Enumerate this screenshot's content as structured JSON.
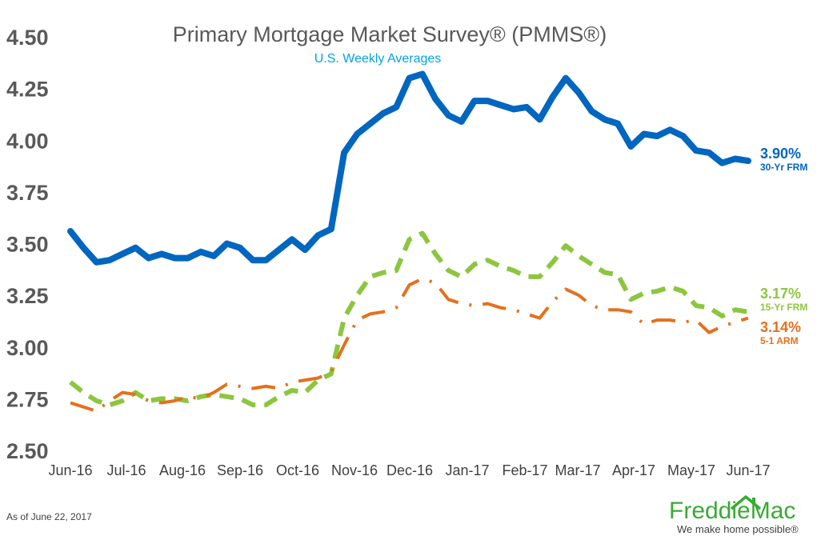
{
  "colors": {
    "frm30": "#0066c0",
    "frm15": "#8cc63f",
    "arm51": "#e5701d",
    "title": "#595959",
    "subtitle": "#00a3e0",
    "brand": "#3aaa35"
  },
  "footer": {
    "as_of": "As of June 22, 2017",
    "brand_name": "FreddieMac",
    "tagline": "We make home possible®"
  },
  "chart_data": {
    "type": "line",
    "title": "Primary Mortgage Market Survey® (PMMS®)",
    "subtitle": "U.S. Weekly Averages",
    "xlabel": "",
    "ylabel": "",
    "ylim": [
      2.5,
      4.5
    ],
    "yticks": [
      "4.50",
      "4.25",
      "4.00",
      "3.75",
      "3.50",
      "3.25",
      "3.00",
      "2.75",
      "2.50"
    ],
    "xticks": [
      "Jun-16",
      "Jul-16",
      "Aug-16",
      "Sep-16",
      "Oct-16",
      "Nov-16",
      "Dec-16",
      "Jan-17",
      "Feb-17",
      "Mar-17",
      "Apr-17",
      "May-17",
      "Jun-17"
    ],
    "grid": false,
    "legend": "end-of-line labels",
    "series": [
      {
        "name": "30-Yr FRM",
        "end_label": "3.90%",
        "style": "solid",
        "values": [
          3.56,
          3.48,
          3.41,
          3.42,
          3.45,
          3.48,
          3.43,
          3.45,
          3.43,
          3.43,
          3.46,
          3.44,
          3.5,
          3.48,
          3.42,
          3.42,
          3.47,
          3.52,
          3.47,
          3.54,
          3.57,
          3.94,
          4.03,
          4.08,
          4.13,
          4.16,
          4.3,
          4.32,
          4.2,
          4.12,
          4.09,
          4.19,
          4.19,
          4.17,
          4.15,
          4.16,
          4.1,
          4.21,
          4.3,
          4.23,
          4.14,
          4.1,
          4.08,
          3.97,
          4.03,
          4.02,
          4.05,
          4.02,
          3.95,
          3.94,
          3.89,
          3.91,
          3.9
        ]
      },
      {
        "name": "15-Yr FRM",
        "end_label": "3.17%",
        "style": "dashed",
        "values": [
          2.83,
          2.78,
          2.74,
          2.72,
          2.74,
          2.78,
          2.74,
          2.75,
          2.75,
          2.74,
          2.76,
          2.77,
          2.76,
          2.75,
          2.72,
          2.72,
          2.76,
          2.79,
          2.78,
          2.84,
          2.87,
          3.14,
          3.25,
          3.34,
          3.36,
          3.37,
          3.52,
          3.55,
          3.45,
          3.37,
          3.34,
          3.4,
          3.42,
          3.39,
          3.37,
          3.34,
          3.34,
          3.41,
          3.49,
          3.44,
          3.4,
          3.36,
          3.35,
          3.23,
          3.26,
          3.27,
          3.29,
          3.27,
          3.2,
          3.19,
          3.15,
          3.18,
          3.17
        ]
      },
      {
        "name": "5-1 ARM",
        "end_label": "3.14%",
        "style": "dash-dot",
        "values": [
          2.73,
          2.71,
          2.69,
          2.74,
          2.78,
          2.77,
          2.74,
          2.73,
          2.74,
          2.76,
          2.75,
          2.78,
          2.82,
          2.81,
          2.8,
          2.81,
          2.8,
          2.83,
          2.84,
          2.85,
          2.88,
          3.01,
          3.13,
          3.16,
          3.17,
          3.19,
          3.3,
          3.33,
          3.31,
          3.23,
          3.21,
          3.2,
          3.21,
          3.19,
          3.18,
          3.16,
          3.14,
          3.22,
          3.28,
          3.25,
          3.2,
          3.18,
          3.18,
          3.17,
          3.11,
          3.13,
          3.13,
          3.12,
          3.13,
          3.07,
          3.1,
          3.12,
          3.14
        ]
      }
    ]
  }
}
